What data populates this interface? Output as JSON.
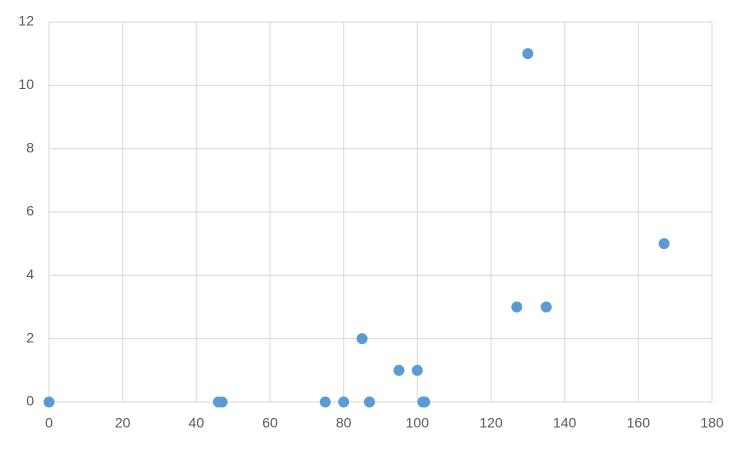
{
  "chart_data": {
    "type": "scatter",
    "series": [
      {
        "color": "#5b9bd5",
        "x": [
          0,
          46,
          47,
          75,
          80,
          85,
          87,
          95,
          100,
          101.5,
          102,
          127,
          130,
          135,
          167
        ],
        "values": [
          0,
          0,
          0,
          0,
          0,
          2,
          0,
          1,
          1,
          0,
          0,
          3,
          11,
          3,
          5
        ]
      }
    ],
    "xlim": [
      0,
      180
    ],
    "xticks": [
      0,
      20,
      40,
      60,
      80,
      100,
      120,
      140,
      160,
      180
    ],
    "ylim": [
      0,
      12
    ],
    "yticks": [
      0,
      2,
      4,
      6,
      8,
      10,
      12
    ],
    "grid": true
  }
}
